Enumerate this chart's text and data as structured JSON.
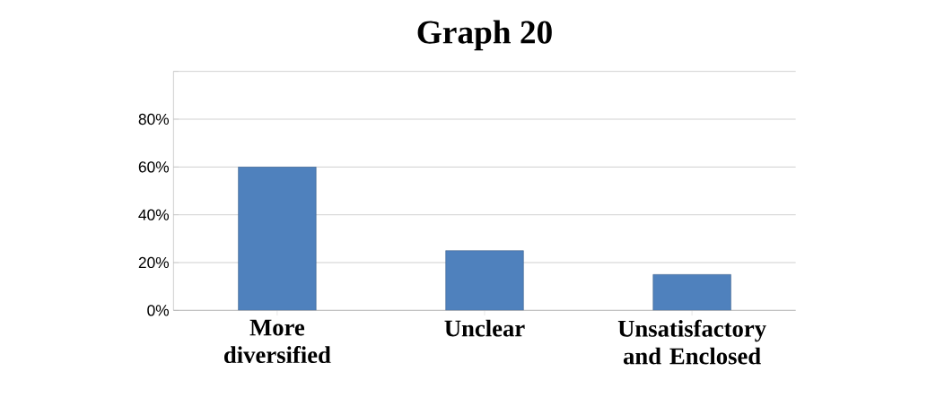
{
  "chart_data": {
    "type": "bar",
    "title": "Graph 20",
    "categories": [
      "More diversified",
      "Unclear",
      "Unsatisfactory and Enclosed"
    ],
    "values": [
      60,
      25,
      15
    ],
    "color": "#4f81bd",
    "ylim": [
      0,
      100
    ],
    "yticks": [
      {
        "value": 0,
        "label": "0%"
      },
      {
        "value": 20,
        "label": "20%"
      },
      {
        "value": 40,
        "label": "40%"
      },
      {
        "value": 60,
        "label": "60%"
      },
      {
        "value": 80,
        "label": "80%"
      },
      {
        "value": 100,
        "label": null
      }
    ],
    "grid": "y"
  }
}
